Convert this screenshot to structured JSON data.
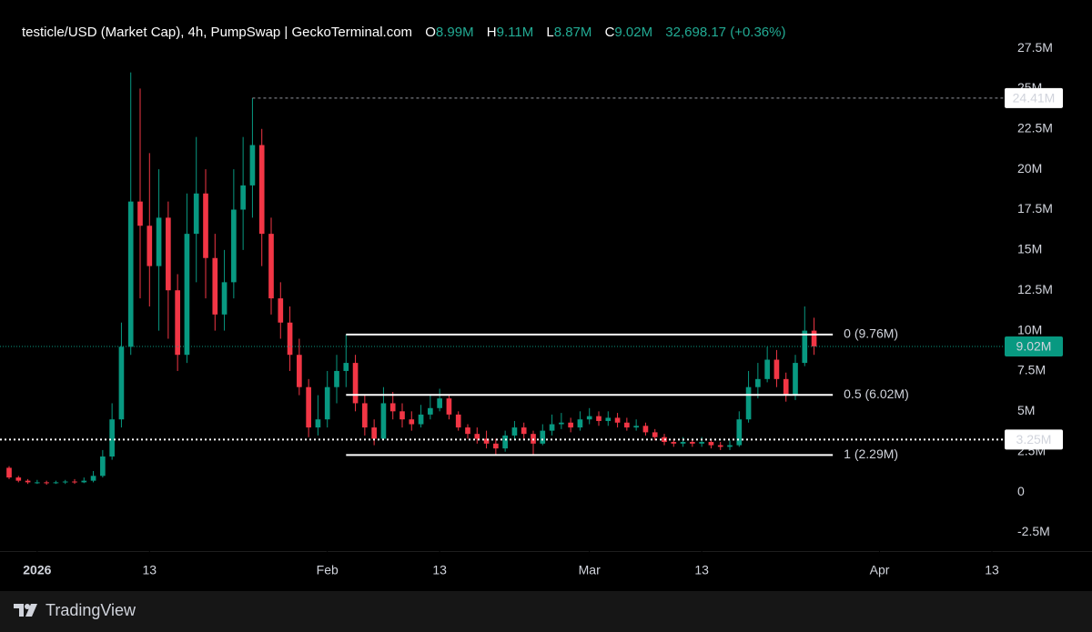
{
  "header": {
    "title": "testicle/USD (Market Cap), 4h, PumpSwap | GeckoTerminal.com",
    "ohlc": [
      {
        "key": "O",
        "value": "8.99M"
      },
      {
        "key": "H",
        "value": "9.11M"
      },
      {
        "key": "L",
        "value": "8.87M"
      },
      {
        "key": "C",
        "value": "9.02M"
      }
    ],
    "change": "32,698.17 (+0.36%)"
  },
  "chart_data": {
    "type": "candlestick",
    "x": [
      "2025-12-29",
      "2025-12-30",
      "2025-12-31",
      "2026-01-01",
      "2026-01-02",
      "2026-01-03",
      "2026-01-04",
      "2026-01-05",
      "2026-01-06",
      "2026-01-07",
      "2026-01-08",
      "2026-01-09",
      "2026-01-10",
      "2026-01-11",
      "2026-01-12",
      "2026-01-13",
      "2026-01-14",
      "2026-01-15",
      "2026-01-16",
      "2026-01-17",
      "2026-01-18",
      "2026-01-19",
      "2026-01-20",
      "2026-01-21",
      "2026-01-22",
      "2026-01-23",
      "2026-01-24",
      "2026-01-25",
      "2026-01-26",
      "2026-01-27",
      "2026-01-28",
      "2026-01-29",
      "2026-01-30",
      "2026-01-31",
      "2026-02-01",
      "2026-02-02",
      "2026-02-03",
      "2026-02-04",
      "2026-02-05",
      "2026-02-06",
      "2026-02-07",
      "2026-02-08",
      "2026-02-09",
      "2026-02-10",
      "2026-02-11",
      "2026-02-12",
      "2026-02-13",
      "2026-02-14",
      "2026-02-15",
      "2026-02-16",
      "2026-02-17",
      "2026-02-18",
      "2026-02-19",
      "2026-02-20",
      "2026-02-21",
      "2026-02-22",
      "2026-02-23",
      "2026-02-24",
      "2026-02-25",
      "2026-02-26",
      "2026-02-27",
      "2026-02-28",
      "2026-03-01",
      "2026-03-02",
      "2026-03-03",
      "2026-03-04",
      "2026-03-05",
      "2026-03-06",
      "2026-03-07",
      "2026-03-08",
      "2026-03-09",
      "2026-03-10",
      "2026-03-11",
      "2026-03-12",
      "2026-03-13",
      "2026-03-14",
      "2026-03-15",
      "2026-03-16",
      "2026-03-17",
      "2026-03-18",
      "2026-03-19",
      "2026-03-20",
      "2026-03-21",
      "2026-03-22",
      "2026-03-23",
      "2026-03-24",
      "2026-03-25"
    ],
    "open": [
      1.5,
      0.9,
      0.7,
      0.6,
      0.6,
      0.55,
      0.6,
      0.65,
      0.6,
      0.7,
      1.0,
      2.2,
      4.5,
      9.0,
      18.0,
      16.5,
      14.0,
      17.0,
      12.5,
      8.5,
      16.0,
      18.5,
      14.5,
      11.0,
      13.0,
      17.5,
      19.0,
      21.5,
      16.0,
      12.0,
      10.5,
      8.5,
      6.5,
      4.0,
      4.5,
      6.5,
      7.5,
      8.0,
      5.5,
      4.0,
      3.3,
      5.5,
      5.0,
      4.5,
      4.2,
      4.8,
      5.2,
      5.8,
      4.8,
      4.0,
      3.6,
      3.3,
      3.0,
      2.7,
      3.5,
      4.0,
      3.6,
      3.0,
      3.8,
      4.2,
      4.3,
      4.0,
      4.5,
      4.7,
      4.4,
      4.6,
      4.3,
      4.0,
      4.1,
      3.7,
      3.4,
      3.1,
      3.0,
      3.1,
      3.0,
      3.1,
      2.9,
      2.8,
      2.9,
      4.5,
      6.5,
      7.0,
      8.2,
      7.0,
      6.0,
      8.0,
      10.0
    ],
    "high": [
      1.6,
      1.0,
      0.8,
      0.75,
      0.7,
      0.7,
      0.75,
      0.8,
      0.9,
      1.3,
      2.6,
      5.5,
      10.5,
      26.0,
      25.0,
      21.0,
      20.0,
      18.0,
      13.5,
      18.5,
      22.0,
      20.0,
      16.0,
      15.0,
      20.0,
      22.0,
      24.41,
      22.5,
      17.0,
      13.0,
      11.5,
      9.5,
      7.0,
      6.0,
      7.5,
      8.5,
      9.76,
      8.5,
      6.0,
      4.5,
      6.5,
      6.2,
      5.5,
      5.0,
      5.4,
      6.0,
      6.4,
      6.0,
      5.0,
      4.2,
      4.0,
      3.8,
      3.3,
      3.8,
      4.4,
      4.3,
      3.8,
      4.2,
      4.8,
      4.9,
      4.6,
      5.0,
      5.2,
      5.0,
      5.0,
      4.9,
      4.6,
      4.5,
      4.3,
      3.9,
      3.6,
      3.3,
      3.4,
      3.3,
      3.4,
      3.2,
      3.1,
      3.2,
      5.0,
      7.5,
      8.0,
      9.0,
      8.8,
      7.4,
      8.5,
      11.5,
      10.8
    ],
    "low": [
      0.8,
      0.6,
      0.5,
      0.5,
      0.45,
      0.5,
      0.5,
      0.5,
      0.55,
      0.6,
      0.9,
      2.0,
      4.0,
      8.5,
      12.0,
      11.5,
      10.0,
      9.5,
      7.5,
      8.0,
      13.0,
      12.0,
      10.0,
      10.0,
      12.0,
      15.0,
      17.0,
      14.0,
      11.0,
      9.5,
      7.5,
      6.0,
      3.4,
      3.5,
      4.0,
      5.5,
      6.5,
      5.0,
      3.5,
      2.9,
      3.2,
      4.5,
      4.0,
      3.8,
      4.0,
      4.5,
      5.0,
      4.5,
      3.8,
      3.3,
      3.0,
      2.7,
      2.29,
      2.5,
      3.2,
      3.3,
      2.3,
      2.9,
      3.5,
      3.9,
      3.7,
      3.8,
      4.2,
      4.1,
      4.1,
      4.0,
      3.8,
      3.8,
      3.5,
      3.2,
      2.9,
      2.8,
      2.8,
      2.8,
      2.8,
      2.7,
      2.6,
      2.6,
      2.8,
      4.3,
      5.8,
      6.8,
      6.5,
      5.6,
      5.7,
      7.8,
      8.5
    ],
    "close": [
      0.9,
      0.7,
      0.6,
      0.6,
      0.55,
      0.6,
      0.65,
      0.6,
      0.7,
      1.0,
      2.2,
      4.5,
      9.0,
      18.0,
      16.5,
      14.0,
      17.0,
      12.5,
      8.5,
      16.0,
      18.5,
      14.5,
      11.0,
      13.0,
      17.5,
      19.0,
      21.5,
      16.0,
      12.0,
      10.5,
      8.5,
      6.5,
      4.0,
      4.5,
      6.5,
      7.5,
      8.0,
      5.5,
      4.0,
      3.3,
      5.5,
      5.0,
      4.5,
      4.2,
      4.8,
      5.2,
      5.8,
      4.8,
      4.0,
      3.6,
      3.3,
      3.0,
      2.7,
      3.5,
      4.0,
      3.6,
      3.0,
      3.8,
      4.2,
      4.3,
      4.0,
      4.5,
      4.7,
      4.4,
      4.6,
      4.3,
      4.0,
      4.1,
      3.7,
      3.4,
      3.1,
      3.0,
      3.1,
      3.0,
      3.1,
      2.9,
      2.8,
      2.9,
      4.5,
      6.5,
      7.0,
      8.2,
      7.0,
      6.0,
      8.0,
      10.0,
      9.02
    ],
    "up_color": "#089981",
    "down_color": "#f23645",
    "xlim": [
      "2025-12-29",
      "2026-04-13"
    ],
    "xticks": [
      {
        "value": "2026-01-01",
        "label": "2026"
      },
      {
        "value": "2026-01-13",
        "label": "13"
      },
      {
        "value": "2026-02-01",
        "label": "Feb"
      },
      {
        "value": "2026-02-13",
        "label": "13"
      },
      {
        "value": "2026-03-01",
        "label": "Mar"
      },
      {
        "value": "2026-03-13",
        "label": "13"
      },
      {
        "value": "2026-04-01",
        "label": "Apr"
      },
      {
        "value": "2026-04-13",
        "label": "13"
      }
    ],
    "ylim": [
      -3.66,
      29.25
    ],
    "yticks": [
      {
        "value": -2.5,
        "label": "-2.5M"
      },
      0,
      {
        "value": 2.5,
        "label": "2.5M"
      },
      {
        "value": 5,
        "label": "5M"
      },
      {
        "value": 7.5,
        "label": "7.5M"
      },
      {
        "value": 10,
        "label": "10M"
      },
      {
        "value": 12.5,
        "label": "12.5M"
      },
      {
        "value": 15,
        "label": "15M"
      },
      {
        "value": 17.5,
        "label": "17.5M"
      },
      {
        "value": 20,
        "label": "20M"
      },
      {
        "value": 22.5,
        "label": "22.5M"
      },
      {
        "value": 25,
        "label": "25M"
      },
      {
        "value": 27.5,
        "label": "27.5M"
      }
    ],
    "price_lines": [
      {
        "value": 24.41,
        "label": "24.41M",
        "style": "dashed",
        "from": "2026-01-24"
      },
      {
        "value": 3.25,
        "label": "3.25M",
        "style": "dotted"
      },
      {
        "value": 9.02,
        "label": "9.02M",
        "style": "current"
      }
    ],
    "fib": {
      "from": "2026-02-03",
      "to": "2026-03-27",
      "levels": [
        {
          "value": 9.76,
          "label": "0 (9.76M)"
        },
        {
          "value": 6.02,
          "label": "0.5 (6.02M)"
        },
        {
          "value": 2.29,
          "label": "1 (2.29M)"
        }
      ]
    }
  },
  "footer": {
    "brand": "TradingView"
  }
}
